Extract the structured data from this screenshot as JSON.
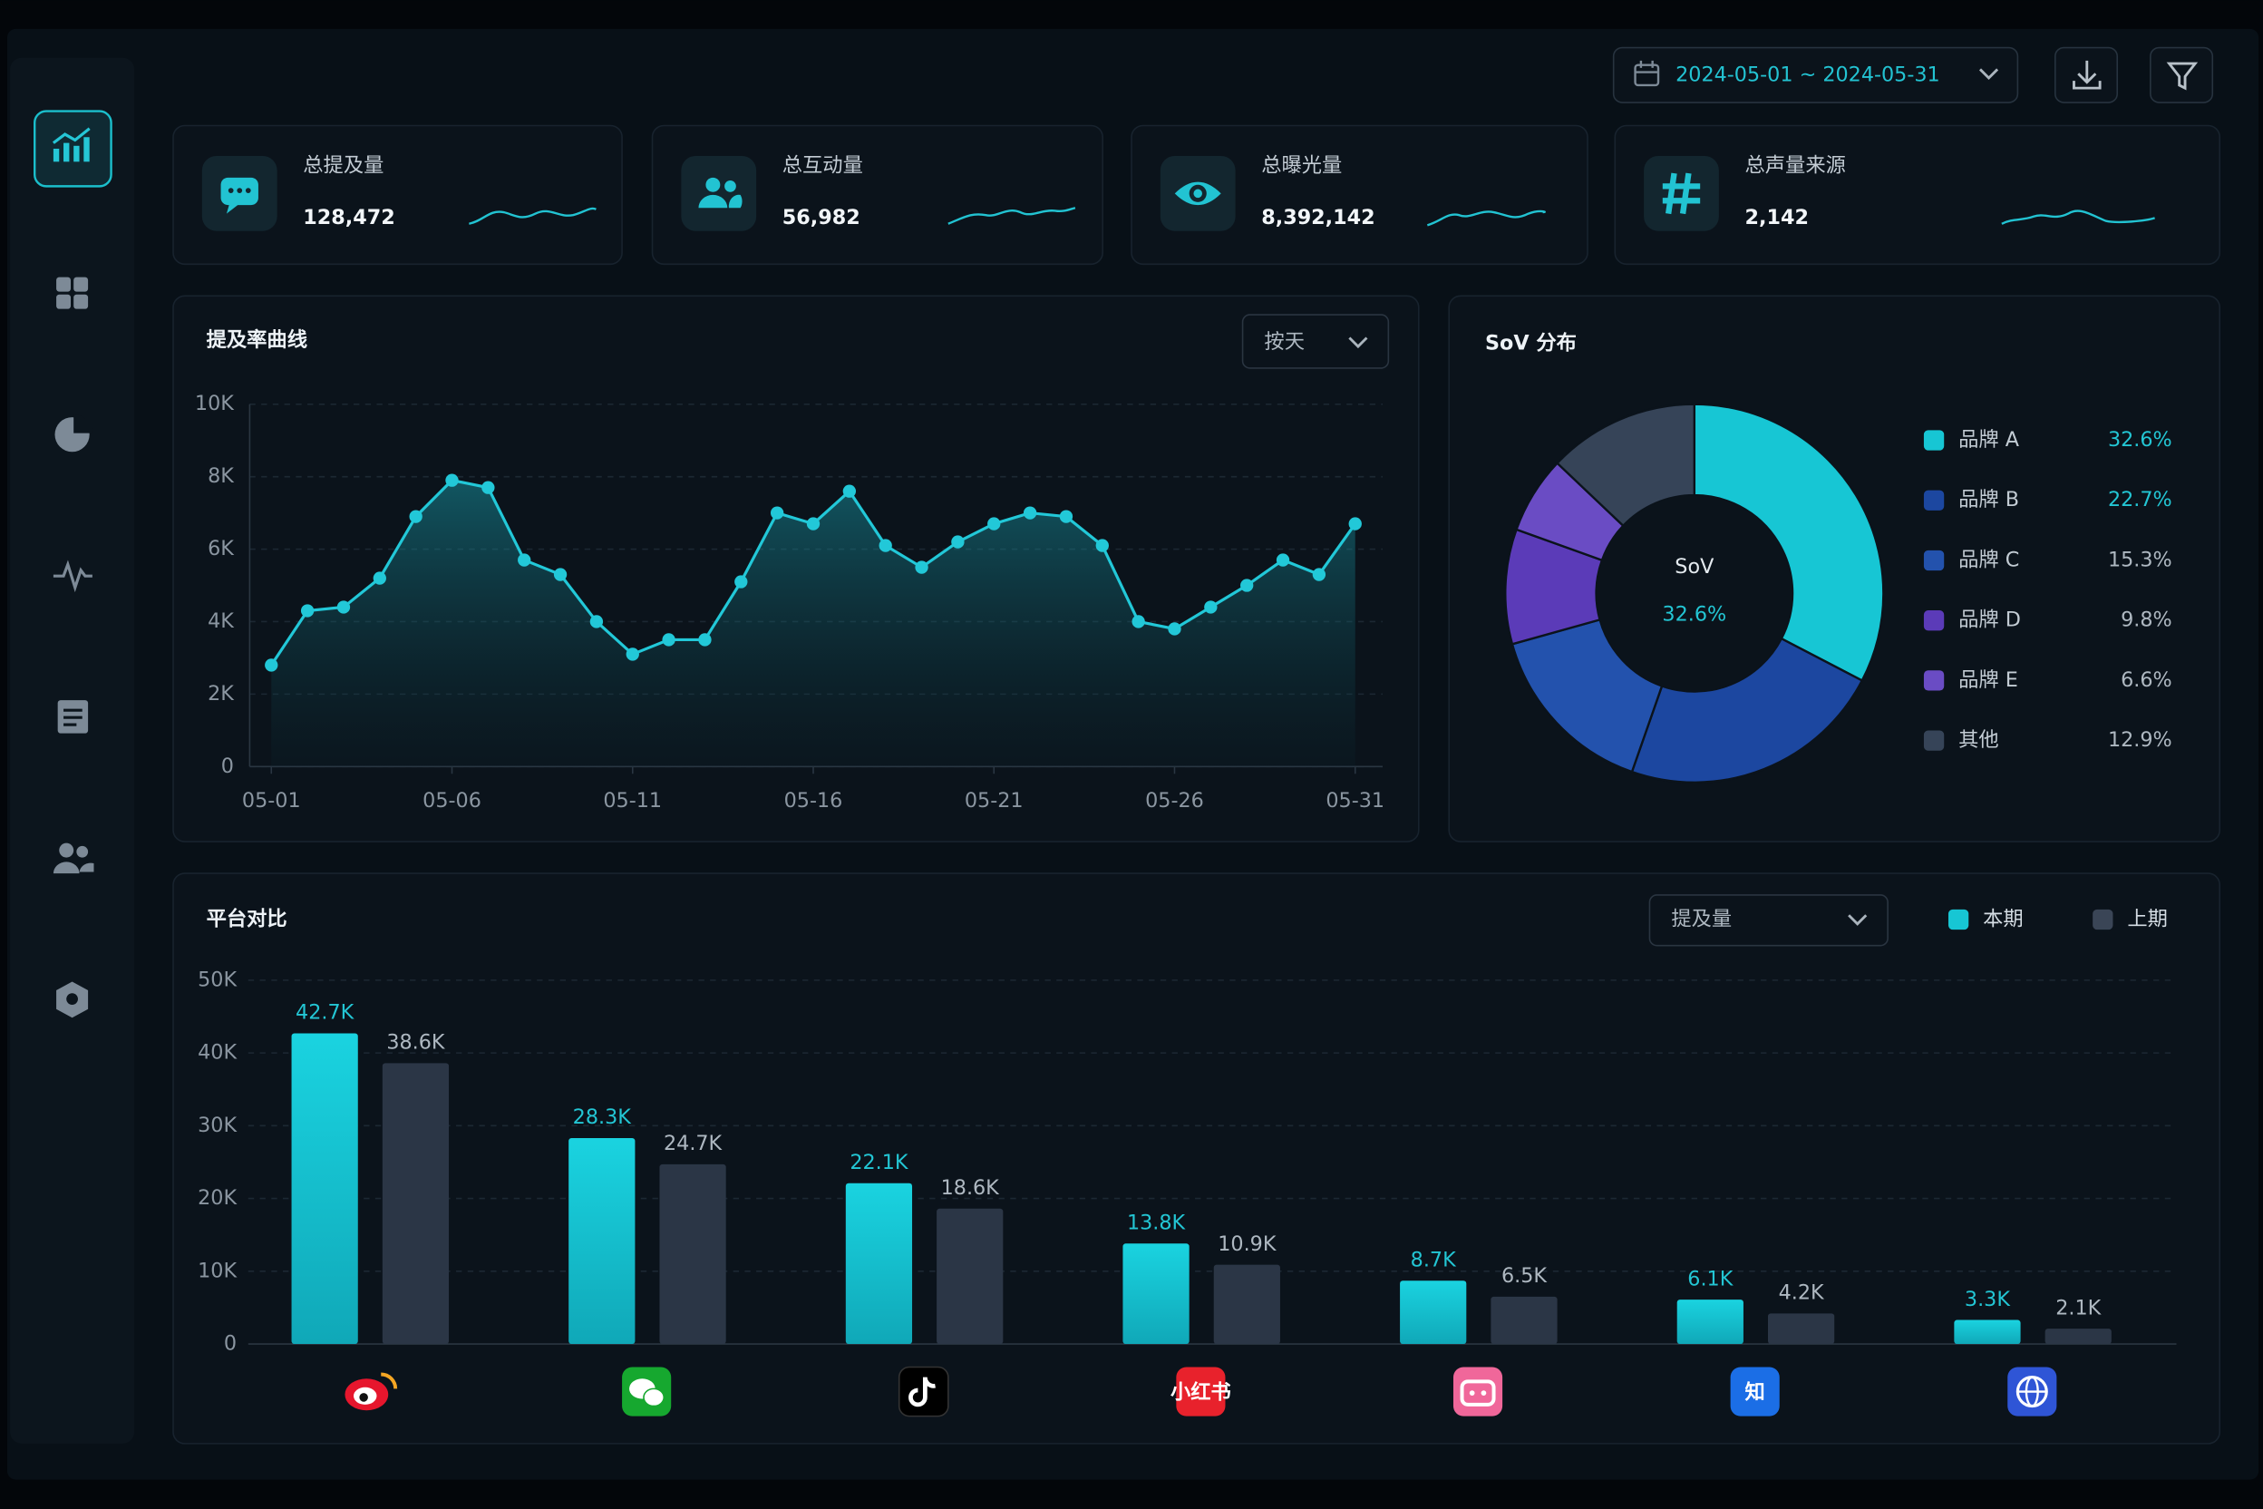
{
  "header": {
    "date_range": "2024-05-01 ~ 2024-05-31"
  },
  "kpis": [
    {
      "label": "总提及量",
      "value": "128,472"
    },
    {
      "label": "总互动量",
      "value": "56,982"
    },
    {
      "label": "总曝光量",
      "value": "8,392,142"
    },
    {
      "label": "总声量来源",
      "value": "2,142"
    }
  ],
  "mention_chart": {
    "type": "line",
    "title": "提及率曲线",
    "dropdown": "按天",
    "color": "#22c8d8",
    "categories": [
      "05-01",
      null,
      null,
      null,
      null,
      "05-06",
      null,
      null,
      null,
      null,
      "05-11",
      null,
      null,
      null,
      null,
      "05-16",
      null,
      null,
      null,
      null,
      "05-21",
      null,
      null,
      null,
      null,
      "05-26",
      null,
      null,
      null,
      null,
      "05-31"
    ],
    "values": [
      2800,
      4300,
      4400,
      5200,
      6900,
      7900,
      7700,
      5700,
      5300,
      4000,
      3100,
      3500,
      3500,
      5100,
      7000,
      6700,
      7600,
      6100,
      5500,
      6200,
      6700,
      7000,
      6900,
      6100,
      4000,
      3800,
      4400,
      5000,
      5700,
      5300,
      6700
    ],
    "ylim": [
      0,
      10000
    ],
    "yticks": [
      0,
      {
        "value": 2000,
        "label": "2K"
      },
      {
        "value": 4000,
        "label": "4K"
      },
      {
        "value": 6000,
        "label": "6K"
      },
      {
        "value": 8000,
        "label": "8K"
      },
      {
        "value": 10000,
        "label": "10K"
      }
    ],
    "grid": true
  },
  "sov_chart": {
    "type": "donut",
    "title": "SoV 分布",
    "center_label": "SoV",
    "categories": [
      "品牌 A",
      "品牌 B",
      "品牌 C",
      "品牌 D",
      "品牌 E",
      "其他"
    ],
    "values": [
      32.6,
      22.7,
      15.3,
      9.8,
      6.6,
      12.9
    ],
    "value_labels": [
      "32.6%",
      "22.7%",
      "15.3%",
      "9.8%",
      "6.6%",
      "12.9%"
    ],
    "colors": [
      "#17c6d4",
      "#1c47a0",
      "#2352ad",
      "#5b3bb8",
      "#6a4cc4",
      "#364458"
    ]
  },
  "platform_chart": {
    "type": "bar",
    "title": "平台对比",
    "dropdown": "提及量",
    "categories": [
      null,
      null,
      null,
      "小红书",
      null,
      "知",
      null
    ],
    "series": [
      {
        "name": "本期",
        "color": "#17c6d4",
        "values": [
          42700,
          28300,
          22100,
          13800,
          8700,
          6100,
          3300
        ],
        "value_labels": [
          "42.7K",
          "28.3K",
          "22.1K",
          "13.8K",
          "8.7K",
          "6.1K",
          "3.3K"
        ]
      },
      {
        "name": "上期",
        "color": "#2b3646",
        "values": [
          38600,
          24700,
          18600,
          10900,
          6500,
          4200,
          2100
        ],
        "value_labels": [
          "38.6K",
          "24.7K",
          "18.6K",
          "10.9K",
          "6.5K",
          "4.2K",
          "2.1K"
        ]
      }
    ],
    "ylim": [
      0,
      50000
    ],
    "yticks": [
      0,
      {
        "value": 10000,
        "label": "10K"
      },
      {
        "value": 20000,
        "label": "20K"
      },
      {
        "value": 30000,
        "label": "30K"
      },
      {
        "value": 40000,
        "label": "40K"
      },
      {
        "value": 50000,
        "label": "50K"
      }
    ],
    "grid": true
  }
}
